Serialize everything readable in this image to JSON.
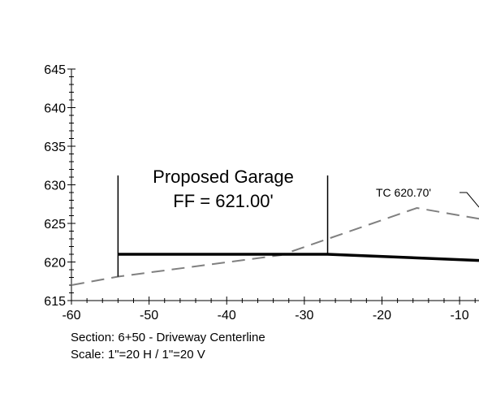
{
  "chart_data": {
    "type": "line",
    "xlim": [
      -60,
      -7.5
    ],
    "ylim": [
      615,
      645
    ],
    "x_ticks": [
      "-60",
      "-50",
      "-40",
      "-30",
      "-20",
      "-10"
    ],
    "y_ticks": [
      "645",
      "640",
      "635",
      "630",
      "625",
      "620",
      "615"
    ],
    "series": [
      {
        "style": "dashed",
        "color": "#808080",
        "x": [
          -60,
          -54,
          -33,
          -15.5,
          -7.5
        ],
        "y": [
          617.0,
          618.1,
          620.9,
          627.0,
          625.6
        ]
      },
      {
        "style": "solid-thick",
        "color": "#000000",
        "x": [
          -54,
          -27,
          -7.5
        ],
        "y": [
          621.0,
          621.0,
          620.2
        ]
      }
    ],
    "annotations": {
      "garage_line1": "Proposed Garage",
      "garage_line2": "FF = 621.00'",
      "callout": "TC 620.70'"
    }
  },
  "captions": {
    "section": "Section: 6+50 - Driveway Centerline",
    "scale": "Scale: 1\"=20 H / 1\"=20 V"
  }
}
